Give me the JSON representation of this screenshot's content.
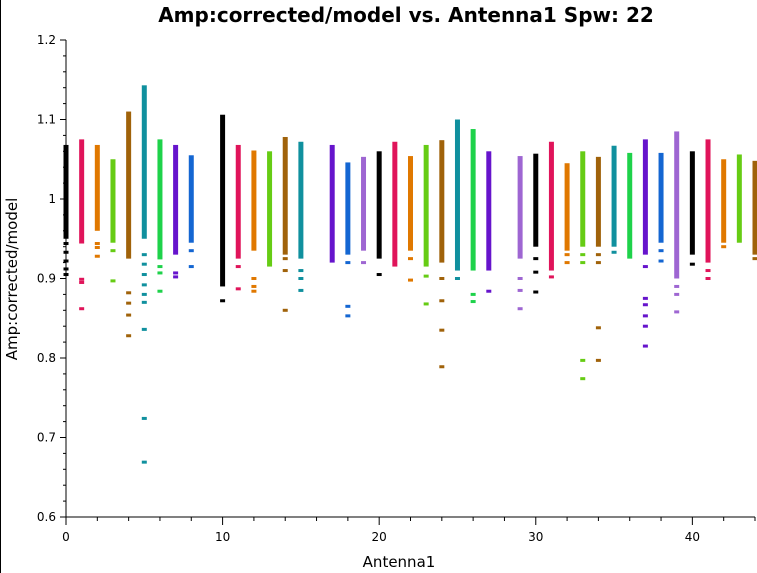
{
  "chart_data": {
    "type": "scatter",
    "title": "Amp:corrected/model vs. Antenna1 Spw: 22",
    "xlabel": "Antenna1",
    "ylabel": "Amp:corrected/model",
    "xlim": [
      0,
      44
    ],
    "ylim": [
      0.6,
      1.2
    ],
    "x_ticks": [
      0,
      10,
      20,
      30,
      40
    ],
    "y_ticks": [
      0.6,
      0.7,
      0.8,
      0.9,
      1.0,
      1.1,
      1.2
    ],
    "x_tick_labels": [
      "0",
      "10",
      "20",
      "30",
      "40"
    ],
    "y_tick_labels": [
      "0.6",
      "0.7",
      "0.8",
      "0.9",
      "1",
      "1.1",
      "1.2"
    ],
    "grid": false,
    "legend": "none",
    "colors": [
      "#000000",
      "#e0145a",
      "#e07800",
      "#66cc14",
      "#a0620a",
      "#10909e",
      "#1ed24a",
      "#6614cc",
      "#1466d2",
      "#9e66d2"
    ],
    "series": [
      {
        "antenna": 0,
        "color": "#000000",
        "range": [
          0.95,
          1.068
        ],
        "outliers": [
          0.944,
          0.933,
          0.922,
          0.912,
          0.905
        ]
      },
      {
        "antenna": 1,
        "color": "#e0145a",
        "range": [
          0.944,
          1.075
        ],
        "outliers": [
          0.899,
          0.895,
          0.862
        ]
      },
      {
        "antenna": 2,
        "color": "#e07800",
        "range": [
          0.96,
          1.068
        ],
        "outliers": [
          0.944,
          0.939,
          0.928
        ]
      },
      {
        "antenna": 3,
        "color": "#66cc14",
        "range": [
          0.945,
          1.05
        ],
        "outliers": [
          0.935,
          0.897
        ]
      },
      {
        "antenna": 4,
        "color": "#a0620a",
        "range": [
          0.925,
          1.11
        ],
        "outliers": [
          0.882,
          0.869,
          0.854,
          0.828
        ]
      },
      {
        "antenna": 5,
        "color": "#10909e",
        "range": [
          0.95,
          1.143
        ],
        "outliers": [
          0.93,
          0.918,
          0.905,
          0.892,
          0.88,
          0.87,
          0.836,
          0.724,
          0.669
        ]
      },
      {
        "antenna": 6,
        "color": "#1ed24a",
        "range": [
          0.924,
          1.075
        ],
        "outliers": [
          0.915,
          0.907,
          0.884
        ]
      },
      {
        "antenna": 7,
        "color": "#6614cc",
        "range": [
          0.93,
          1.068
        ],
        "outliers": [
          0.907,
          0.902
        ]
      },
      {
        "antenna": 8,
        "color": "#1466d2",
        "range": [
          0.945,
          1.055
        ],
        "outliers": [
          0.935,
          0.915
        ]
      },
      {
        "antenna": 10,
        "color": "#000000",
        "range": [
          0.89,
          1.106
        ],
        "outliers": [
          0.872
        ]
      },
      {
        "antenna": 11,
        "color": "#e0145a",
        "range": [
          0.925,
          1.068
        ],
        "outliers": [
          0.915,
          0.887
        ]
      },
      {
        "antenna": 12,
        "color": "#e07800",
        "range": [
          0.935,
          1.061
        ],
        "outliers": [
          0.9,
          0.89,
          0.884
        ]
      },
      {
        "antenna": 13,
        "color": "#66cc14",
        "range": [
          0.915,
          1.06
        ],
        "outliers": []
      },
      {
        "antenna": 14,
        "color": "#a0620a",
        "range": [
          0.93,
          1.078
        ],
        "outliers": [
          0.925,
          0.91,
          0.86
        ]
      },
      {
        "antenna": 15,
        "color": "#10909e",
        "range": [
          0.925,
          1.072
        ],
        "outliers": [
          0.91,
          0.9,
          0.885
        ]
      },
      {
        "antenna": 17,
        "color": "#6614cc",
        "range": [
          0.92,
          1.068
        ],
        "outliers": []
      },
      {
        "antenna": 18,
        "color": "#1466d2",
        "range": [
          0.93,
          1.046
        ],
        "outliers": [
          0.92,
          0.865,
          0.853
        ]
      },
      {
        "antenna": 19,
        "color": "#9e66d2",
        "range": [
          0.935,
          1.053
        ],
        "outliers": [
          0.92
        ]
      },
      {
        "antenna": 20,
        "color": "#000000",
        "range": [
          0.925,
          1.06
        ],
        "outliers": [
          0.905
        ]
      },
      {
        "antenna": 21,
        "color": "#e0145a",
        "range": [
          0.915,
          1.072
        ],
        "outliers": []
      },
      {
        "antenna": 22,
        "color": "#e07800",
        "range": [
          0.935,
          1.054
        ],
        "outliers": [
          0.925,
          0.898
        ]
      },
      {
        "antenna": 23,
        "color": "#66cc14",
        "range": [
          0.915,
          1.068
        ],
        "outliers": [
          0.903,
          0.868
        ]
      },
      {
        "antenna": 24,
        "color": "#a0620a",
        "range": [
          0.92,
          1.074
        ],
        "outliers": [
          0.9,
          0.872,
          0.835,
          0.789
        ]
      },
      {
        "antenna": 25,
        "color": "#10909e",
        "range": [
          0.91,
          1.1
        ],
        "outliers": [
          0.9
        ]
      },
      {
        "antenna": 26,
        "color": "#1ed24a",
        "range": [
          0.91,
          1.088
        ],
        "outliers": [
          0.88,
          0.871
        ]
      },
      {
        "antenna": 27,
        "color": "#6614cc",
        "range": [
          0.91,
          1.06
        ],
        "outliers": [
          0.884
        ]
      },
      {
        "antenna": 29,
        "color": "#9e66d2",
        "range": [
          0.925,
          1.054
        ],
        "outliers": [
          0.9,
          0.885,
          0.862
        ]
      },
      {
        "antenna": 30,
        "color": "#000000",
        "range": [
          0.94,
          1.057
        ],
        "outliers": [
          0.925,
          0.908,
          0.883
        ]
      },
      {
        "antenna": 31,
        "color": "#e0145a",
        "range": [
          0.91,
          1.072
        ],
        "outliers": [
          0.902
        ]
      },
      {
        "antenna": 32,
        "color": "#e07800",
        "range": [
          0.935,
          1.045
        ],
        "outliers": [
          0.93,
          0.92
        ]
      },
      {
        "antenna": 33,
        "color": "#66cc14",
        "range": [
          0.94,
          1.06
        ],
        "outliers": [
          0.93,
          0.92,
          0.797,
          0.774
        ]
      },
      {
        "antenna": 34,
        "color": "#a0620a",
        "range": [
          0.94,
          1.053
        ],
        "outliers": [
          0.93,
          0.92,
          0.838,
          0.797
        ]
      },
      {
        "antenna": 35,
        "color": "#10909e",
        "range": [
          0.94,
          1.067
        ],
        "outliers": [
          0.933
        ]
      },
      {
        "antenna": 36,
        "color": "#1ed24a",
        "range": [
          0.925,
          1.058
        ],
        "outliers": []
      },
      {
        "antenna": 37,
        "color": "#6614cc",
        "range": [
          0.93,
          1.075
        ],
        "outliers": [
          0.915,
          0.875,
          0.867,
          0.853,
          0.84,
          0.815
        ]
      },
      {
        "antenna": 38,
        "color": "#1466d2",
        "range": [
          0.945,
          1.058
        ],
        "outliers": [
          0.935,
          0.922
        ]
      },
      {
        "antenna": 39,
        "color": "#9e66d2",
        "range": [
          0.9,
          1.085
        ],
        "outliers": [
          0.89,
          0.88,
          0.858
        ]
      },
      {
        "antenna": 40,
        "color": "#000000",
        "range": [
          0.93,
          1.06
        ],
        "outliers": [
          0.918
        ]
      },
      {
        "antenna": 41,
        "color": "#e0145a",
        "range": [
          0.92,
          1.075
        ],
        "outliers": [
          0.91,
          0.9
        ]
      },
      {
        "antenna": 42,
        "color": "#e07800",
        "range": [
          0.945,
          1.05
        ],
        "outliers": [
          0.94
        ]
      },
      {
        "antenna": 43,
        "color": "#66cc14",
        "range": [
          0.945,
          1.056
        ],
        "outliers": []
      },
      {
        "antenna": 44,
        "color": "#a0620a",
        "range": [
          0.93,
          1.048
        ],
        "outliers": [
          0.925
        ]
      }
    ]
  }
}
